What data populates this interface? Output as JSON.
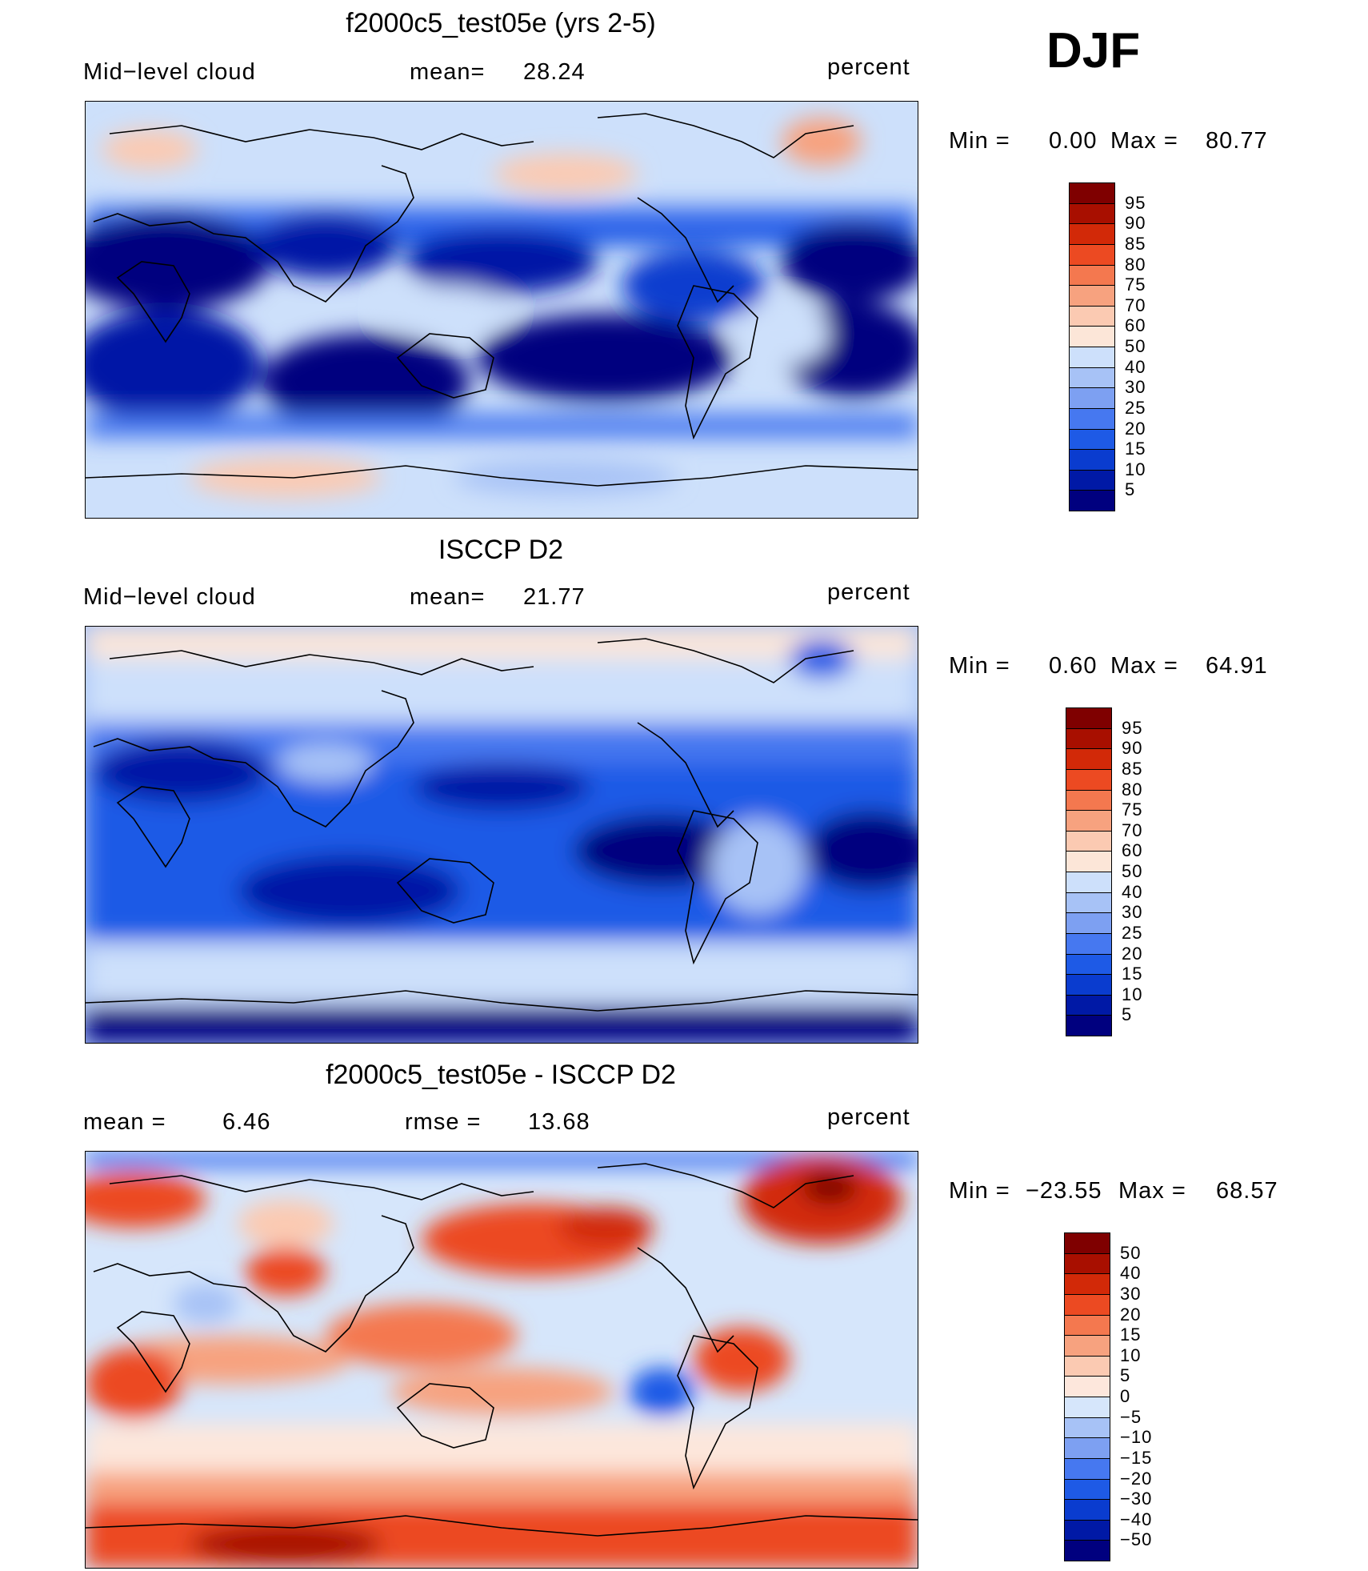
{
  "season": "DJF",
  "colors": {
    "seq": [
      "#00007f",
      "#0019a6",
      "#0a3ccf",
      "#1e5ae6",
      "#4678f0",
      "#7da0f2",
      "#a7c2f6",
      "#cde0fb",
      "#fce6d8",
      "#fbcab2",
      "#f7a27f",
      "#f4784f",
      "#ec4a22",
      "#d22908",
      "#a80f00",
      "#7f0000"
    ],
    "diff": [
      "#00007f",
      "#0019a6",
      "#0a3ccf",
      "#1e5ae6",
      "#4678f0",
      "#7da0f2",
      "#a7c2f6",
      "#d6e6fb",
      "#fde7dc",
      "#fbcab2",
      "#f7a27f",
      "#f4784f",
      "#ec4a22",
      "#d22908",
      "#a80f00",
      "#7f0000"
    ]
  },
  "panels": [
    {
      "title": "f2000c5_test05e (yrs 2-5)",
      "left_text": "Mid−level cloud",
      "mid_label": "mean=",
      "mid_value": "28.24",
      "units": "percent",
      "min_label": "Min =",
      "min_value": "0.00",
      "max_label": "Max =",
      "max_value": "80.77",
      "colorbar_labels": [
        "95",
        "90",
        "85",
        "80",
        "75",
        "70",
        "60",
        "50",
        "40",
        "30",
        "25",
        "20",
        "15",
        "10",
        "5"
      ],
      "palette": "seq"
    },
    {
      "title": "ISCCP D2",
      "left_text": "Mid−level cloud",
      "mid_label": "mean=",
      "mid_value": "21.77",
      "units": "percent",
      "min_label": "Min =",
      "min_value": "0.60",
      "max_label": "Max =",
      "max_value": "64.91",
      "colorbar_labels": [
        "95",
        "90",
        "85",
        "80",
        "75",
        "70",
        "60",
        "50",
        "40",
        "30",
        "25",
        "20",
        "15",
        "10",
        "5"
      ],
      "palette": "seq"
    },
    {
      "title": "f2000c5_test05e - ISCCP D2",
      "left_label": "mean =",
      "left_value": "6.46",
      "mid_label": "rmse =",
      "mid_value": "13.68",
      "units": "percent",
      "min_label": "Min =",
      "min_value": "−23.55",
      "max_label": "Max =",
      "max_value": "68.57",
      "colorbar_labels": [
        "50",
        "40",
        "30",
        "20",
        "15",
        "10",
        "5",
        "0",
        "−5",
        "−10",
        "−15",
        "−20",
        "−30",
        "−40",
        "−50"
      ],
      "palette": "diff"
    }
  ]
}
